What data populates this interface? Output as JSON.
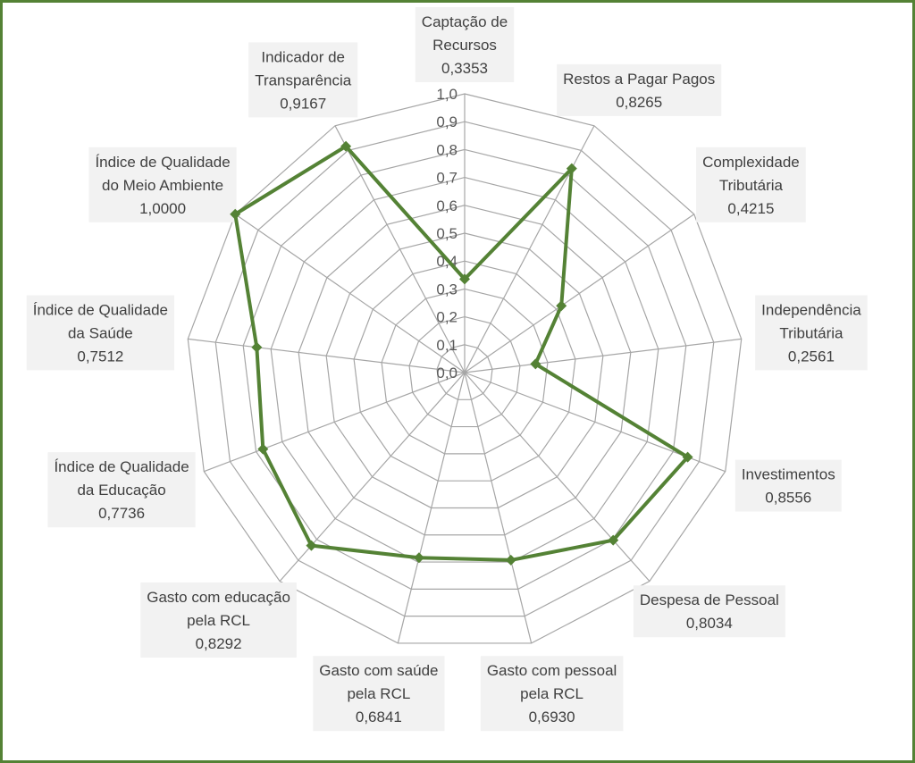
{
  "chart_data": {
    "type": "radar",
    "title": "",
    "rlim": [
      0,
      1
    ],
    "tick_labels": [
      "0,0",
      "0,1",
      "0,2",
      "0,3",
      "0,4",
      "0,5",
      "0,6",
      "0,7",
      "0,8",
      "0,9",
      "1,0"
    ],
    "grid": true,
    "categories": [
      {
        "label": [
          "Captação de",
          "Recursos"
        ],
        "value_text": "0,3353",
        "value": 0.3353
      },
      {
        "label": [
          "Restos a Pagar Pagos"
        ],
        "value_text": "0,8265",
        "value": 0.8265
      },
      {
        "label": [
          "Complexidade",
          "Tributária"
        ],
        "value_text": "0,4215",
        "value": 0.4215
      },
      {
        "label": [
          "Independência",
          "Tributária"
        ],
        "value_text": "0,2561",
        "value": 0.2561
      },
      {
        "label": [
          "Investimentos"
        ],
        "value_text": "0,8556",
        "value": 0.8556
      },
      {
        "label": [
          "Despesa de Pessoal"
        ],
        "value_text": "0,8034",
        "value": 0.8034
      },
      {
        "label": [
          "Gasto com pessoal",
          "pela RCL"
        ],
        "value_text": "0,6930",
        "value": 0.693
      },
      {
        "label": [
          "Gasto com saúde",
          "pela RCL"
        ],
        "value_text": "0,6841",
        "value": 0.6841
      },
      {
        "label": [
          "Gasto com educação",
          "pela RCL"
        ],
        "value_text": "0,8292",
        "value": 0.8292
      },
      {
        "label": [
          "Índice de Qualidade",
          "da Educação"
        ],
        "value_text": "0,7736",
        "value": 0.7736
      },
      {
        "label": [
          "Índice de Qualidade",
          "da Saúde"
        ],
        "value_text": "0,7512",
        "value": 0.7512
      },
      {
        "label": [
          "Índice de Qualidade",
          "do Meio Ambiente"
        ],
        "value_text": "1,0000",
        "value": 1.0
      },
      {
        "label": [
          "Indicador de",
          "Transparência"
        ],
        "value_text": "0,9167",
        "value": 0.9167
      }
    ],
    "colors": {
      "series": "#548235",
      "frame": "#548235",
      "grid": "#a6a6a6",
      "label_bg": "#f2f2f2",
      "label_text": "#404040"
    }
  }
}
